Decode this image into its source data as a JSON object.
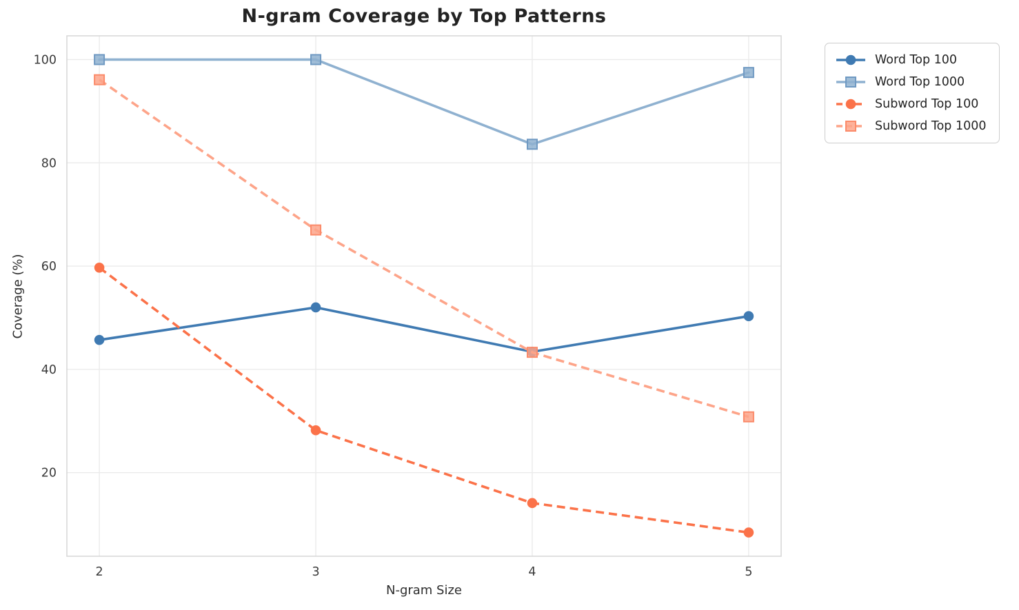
{
  "title": "N-gram Coverage by Top Patterns",
  "chart_data": {
    "type": "line",
    "title": "N-gram Coverage by Top Patterns",
    "xlabel": "N-gram Size",
    "ylabel": "Coverage (%)",
    "x": [
      2,
      3,
      4,
      5
    ],
    "xtick_labels": [
      "2",
      "3",
      "4",
      "5"
    ],
    "yticks": [
      20,
      40,
      60,
      80,
      100
    ],
    "ytick_labels": [
      "20",
      "40",
      "60",
      "80",
      "100"
    ],
    "xlim": [
      1.85,
      5.15
    ],
    "ylim": [
      3.8,
      104.6
    ],
    "grid": true,
    "legend_position": "outside-upper-right",
    "series": [
      {
        "name": "Word Top 100",
        "values": [
          45.7,
          52.0,
          43.4,
          50.3
        ],
        "color": "#3f7ab2",
        "marker": "circle",
        "line_style": "solid"
      },
      {
        "name": "Word Top 1000",
        "values": [
          100.0,
          100.0,
          83.6,
          97.5
        ],
        "color": "#8fb1d0",
        "marker_edge": "#6f99c2",
        "marker": "square",
        "line_style": "solid"
      },
      {
        "name": "Subword Top 100",
        "values": [
          59.7,
          28.2,
          14.1,
          8.4
        ],
        "color": "#fb7249",
        "marker": "circle",
        "line_style": "dashed"
      },
      {
        "name": "Subword Top 1000",
        "values": [
          96.1,
          67.0,
          43.3,
          30.8
        ],
        "color": "#fda489",
        "marker_edge": "#fb8a69",
        "marker": "square",
        "line_style": "dashed"
      }
    ],
    "style": {
      "grid_color": "#ebebeb",
      "spine_color": "#d8d8d8",
      "tick_text_color": "#3a3a3a",
      "title_color": "#232323"
    }
  }
}
